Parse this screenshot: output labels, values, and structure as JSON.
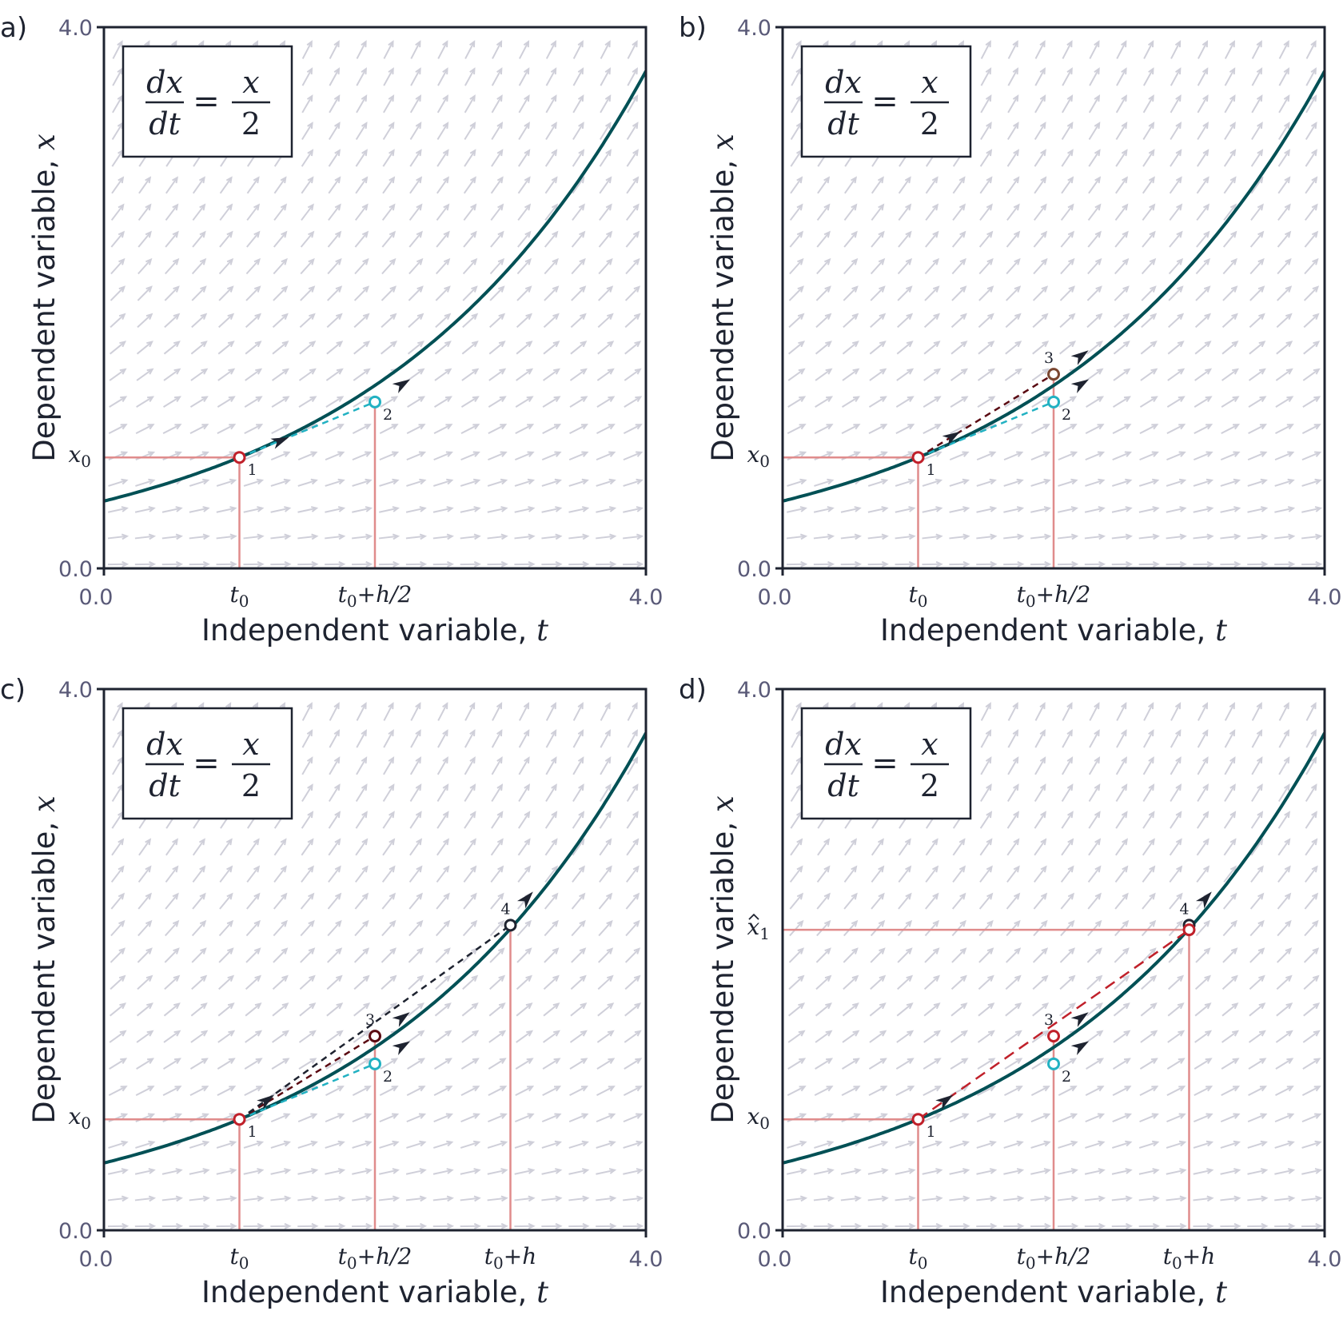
{
  "colors": {
    "curve": "#005055",
    "axis": "#1e2330",
    "guide": "#e08c8c",
    "field": "#cfcfd9",
    "point1": "#c0202a",
    "point2": "#22b1c2",
    "point3_b": "#7a4630",
    "point3_c": "#5a0a12",
    "point3_d": "#c0202a",
    "point4": "#1e2330",
    "xhat1": "#c0202a",
    "arrowhead": "#1e2330"
  },
  "equation": {
    "num_left": "dx",
    "den_left": "dt",
    "equals": "=",
    "num_right": "x",
    "den_right": "2"
  },
  "chart_data": [
    {
      "type": "line",
      "panel_label": "a)",
      "xlabel": "Independent variable, ",
      "xlabel_var": "t",
      "ylabel": "Dependent variable, ",
      "ylabel_var": "x",
      "xlim": [
        0,
        4
      ],
      "ylim": [
        0,
        4
      ],
      "x_tick_labels": [
        "0.0",
        "4.0"
      ],
      "y_tick_labels": [
        "0.0",
        "4.0"
      ],
      "x_special_ticks": [
        {
          "value": 1,
          "base": "t",
          "sub": "0",
          "rest": ""
        },
        {
          "value": 2,
          "base": "t",
          "sub": "0",
          "rest": "+h/2"
        }
      ],
      "y_special_ticks": [
        {
          "value": 0.82,
          "base": "x",
          "sub": "0",
          "hat": false
        }
      ],
      "direction_field": "dx/dt = x/2",
      "solution": {
        "t0": 1,
        "x0": 0.82,
        "rate": 0.5
      },
      "guides": [
        [
          0,
          0.82,
          1,
          0.82
        ],
        [
          1,
          0,
          1,
          0.82
        ],
        [
          2,
          0,
          2,
          1.23
        ]
      ],
      "points": [
        {
          "label": "1",
          "t": 1,
          "x": 0.82,
          "color": "point1"
        },
        {
          "label": "2",
          "t": 2,
          "x": 1.23,
          "color": "point2"
        }
      ],
      "steps": [
        {
          "from": [
            1,
            0.82
          ],
          "to": [
            2,
            1.23
          ],
          "color": "point2",
          "dash": "short"
        }
      ],
      "slope_arrows": [
        {
          "t": 1.3,
          "x": 0.943,
          "slope": 0.41
        },
        {
          "t": 2.2,
          "x": 1.36,
          "slope": 0.615
        }
      ]
    },
    {
      "type": "line",
      "panel_label": "b)",
      "xlabel": "Independent variable, ",
      "xlabel_var": "t",
      "ylabel": "Dependent variable, ",
      "ylabel_var": "x",
      "xlim": [
        0,
        4
      ],
      "ylim": [
        0,
        4
      ],
      "x_tick_labels": [
        "0.0",
        "4.0"
      ],
      "y_tick_labels": [
        "0.0",
        "4.0"
      ],
      "x_special_ticks": [
        {
          "value": 1,
          "base": "t",
          "sub": "0",
          "rest": ""
        },
        {
          "value": 2,
          "base": "t",
          "sub": "0",
          "rest": "+h/2"
        }
      ],
      "y_special_ticks": [
        {
          "value": 0.82,
          "base": "x",
          "sub": "0",
          "hat": false
        }
      ],
      "direction_field": "dx/dt = x/2",
      "solution": {
        "t0": 1,
        "x0": 0.82,
        "rate": 0.5
      },
      "guides": [
        [
          0,
          0.82,
          1,
          0.82
        ],
        [
          1,
          0,
          1,
          0.82
        ],
        [
          2,
          0,
          2,
          1.435
        ]
      ],
      "points": [
        {
          "label": "1",
          "t": 1,
          "x": 0.82,
          "color": "point1"
        },
        {
          "label": "2",
          "t": 2,
          "x": 1.23,
          "color": "point2"
        },
        {
          "label": "3",
          "t": 2,
          "x": 1.435,
          "color": "point3_b"
        }
      ],
      "steps": [
        {
          "from": [
            1,
            0.82
          ],
          "to": [
            2,
            1.23
          ],
          "color": "point2",
          "dash": "short"
        },
        {
          "from": [
            1,
            0.82
          ],
          "to": [
            2,
            1.435
          ],
          "color": "point3_c",
          "dash": "short"
        }
      ],
      "slope_arrows": [
        {
          "t": 1.25,
          "x": 0.974,
          "slope": 0.615
        },
        {
          "t": 2.2,
          "x": 1.36,
          "slope": 0.615
        },
        {
          "t": 2.2,
          "x": 1.57,
          "slope": 0.7175
        }
      ]
    },
    {
      "type": "line",
      "panel_label": "c)",
      "xlabel": "Independent variable, ",
      "xlabel_var": "t",
      "ylabel": "Dependent variable, ",
      "ylabel_var": "x",
      "xlim": [
        0,
        4
      ],
      "ylim": [
        0,
        4
      ],
      "x_tick_labels": [
        "0.0",
        "4.0"
      ],
      "y_tick_labels": [
        "0.0",
        "4.0"
      ],
      "x_special_ticks": [
        {
          "value": 1,
          "base": "t",
          "sub": "0",
          "rest": ""
        },
        {
          "value": 2,
          "base": "t",
          "sub": "0",
          "rest": "+h/2"
        },
        {
          "value": 3,
          "base": "t",
          "sub": "0",
          "rest": "+h"
        }
      ],
      "y_special_ticks": [
        {
          "value": 0.82,
          "base": "x",
          "sub": "0",
          "hat": false
        }
      ],
      "direction_field": "dx/dt = x/2",
      "solution": {
        "t0": 1,
        "x0": 0.82,
        "rate": 0.5
      },
      "guides": [
        [
          0,
          0.82,
          1,
          0.82
        ],
        [
          1,
          0,
          1,
          0.82
        ],
        [
          2,
          0,
          2,
          1.435
        ],
        [
          3,
          0,
          3,
          2.255
        ]
      ],
      "points": [
        {
          "label": "1",
          "t": 1,
          "x": 0.82,
          "color": "point1"
        },
        {
          "label": "2",
          "t": 2,
          "x": 1.23,
          "color": "point2"
        },
        {
          "label": "3",
          "t": 2,
          "x": 1.435,
          "color": "point3_c"
        },
        {
          "label": "4",
          "t": 3,
          "x": 2.255,
          "color": "point4"
        }
      ],
      "steps": [
        {
          "from": [
            1,
            0.82
          ],
          "to": [
            2,
            1.23
          ],
          "color": "point2",
          "dash": "short"
        },
        {
          "from": [
            1,
            0.82
          ],
          "to": [
            2,
            1.435
          ],
          "color": "point3_c",
          "dash": "short"
        },
        {
          "from": [
            1,
            0.82
          ],
          "to": [
            3,
            2.255
          ],
          "color": "point4",
          "dash": "short"
        }
      ],
      "slope_arrows": [
        {
          "t": 1.2,
          "x": 0.96,
          "slope": 0.7175
        },
        {
          "t": 2.2,
          "x": 1.36,
          "slope": 0.615
        },
        {
          "t": 2.2,
          "x": 1.57,
          "slope": 0.7175
        },
        {
          "t": 3.12,
          "x": 2.45,
          "slope": 1.1275
        }
      ]
    },
    {
      "type": "line",
      "panel_label": "d)",
      "xlabel": "Independent variable, ",
      "xlabel_var": "t",
      "ylabel": "Dependent variable, ",
      "ylabel_var": "x",
      "xlim": [
        0,
        4
      ],
      "ylim": [
        0,
        4
      ],
      "x_tick_labels": [
        "0.0",
        "4.0"
      ],
      "y_tick_labels": [
        "0.0",
        "4.0"
      ],
      "x_special_ticks": [
        {
          "value": 1,
          "base": "t",
          "sub": "0",
          "rest": ""
        },
        {
          "value": 2,
          "base": "t",
          "sub": "0",
          "rest": "+h/2"
        },
        {
          "value": 3,
          "base": "t",
          "sub": "0",
          "rest": "+h"
        }
      ],
      "y_special_ticks": [
        {
          "value": 0.82,
          "base": "x",
          "sub": "0",
          "hat": false
        },
        {
          "value": 2.221,
          "base": "x",
          "sub": "1",
          "hat": true
        }
      ],
      "direction_field": "dx/dt = x/2",
      "solution": {
        "t0": 1,
        "x0": 0.82,
        "rate": 0.5
      },
      "guides": [
        [
          0,
          0.82,
          1,
          0.82
        ],
        [
          1,
          0,
          1,
          0.82
        ],
        [
          2,
          0,
          2,
          1.435
        ],
        [
          3,
          0,
          3,
          2.221
        ],
        [
          0,
          2.221,
          3,
          2.221
        ]
      ],
      "points": [
        {
          "label": "1",
          "t": 1,
          "x": 0.82,
          "color": "point1"
        },
        {
          "label": "2",
          "t": 2,
          "x": 1.23,
          "color": "point2"
        },
        {
          "label": "3",
          "t": 2,
          "x": 1.435,
          "color": "point3_d"
        },
        {
          "label": "4",
          "t": 3,
          "x": 2.255,
          "color": "point4"
        },
        {
          "label": "",
          "t": 3,
          "x": 2.221,
          "color": "xhat1"
        }
      ],
      "steps": [
        {
          "from": [
            1,
            0.82
          ],
          "to": [
            3,
            2.221
          ],
          "color": "xhat1",
          "dash": "long"
        }
      ],
      "slope_arrows": [
        {
          "t": 1.2,
          "x": 0.96,
          "slope": 0.7
        },
        {
          "t": 2.2,
          "x": 1.36,
          "slope": 0.615
        },
        {
          "t": 2.2,
          "x": 1.57,
          "slope": 0.7175
        },
        {
          "t": 3.12,
          "x": 2.45,
          "slope": 1.1275
        }
      ]
    }
  ]
}
